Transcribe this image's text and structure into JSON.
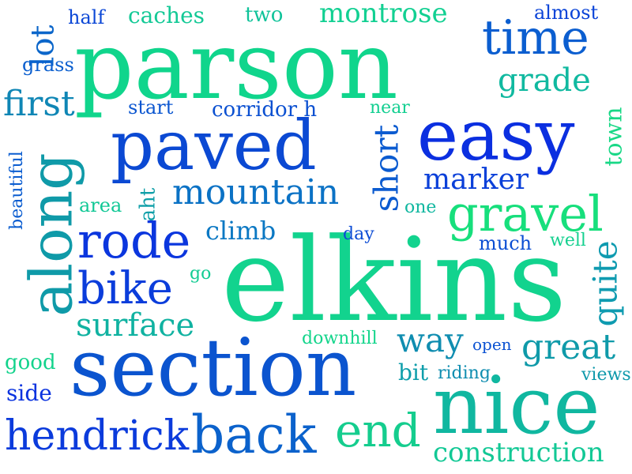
{
  "words": [
    {
      "text": "parson",
      "color": "#10d58c",
      "vertical": false
    },
    {
      "text": "elkins",
      "color": "#12d38e",
      "vertical": false
    },
    {
      "text": "section",
      "color": "#0b54cf",
      "vertical": false
    },
    {
      "text": "paved",
      "color": "#0b49d3",
      "vertical": false
    },
    {
      "text": "easy",
      "color": "#0b2fe0",
      "vertical": false
    },
    {
      "text": "nice",
      "color": "#10b7a0",
      "vertical": false
    },
    {
      "text": "along",
      "color": "#0f9aa8",
      "vertical": true
    },
    {
      "text": "time",
      "color": "#0b5ed0",
      "vertical": false
    },
    {
      "text": "gravel",
      "color": "#17df7c",
      "vertical": false
    },
    {
      "text": "rode",
      "color": "#0b36de",
      "vertical": false
    },
    {
      "text": "back",
      "color": "#0b62cc",
      "vertical": false
    },
    {
      "text": "end",
      "color": "#15cd8e",
      "vertical": false
    },
    {
      "text": "bike",
      "color": "#0b3ddb",
      "vertical": false
    },
    {
      "text": "hendrick",
      "color": "#0b3bdc",
      "vertical": false
    },
    {
      "text": "mountain",
      "color": "#0b72c5",
      "vertical": false
    },
    {
      "text": "surface",
      "color": "#10b2a1",
      "vertical": false
    },
    {
      "text": "great",
      "color": "#0f9aa9",
      "vertical": false
    },
    {
      "text": "way",
      "color": "#0f8db0",
      "vertical": false
    },
    {
      "text": "construction",
      "color": "#12c895",
      "vertical": false
    },
    {
      "text": "grade",
      "color": "#10b9a0",
      "vertical": false
    },
    {
      "text": "montrose",
      "color": "#12d092",
      "vertical": false
    },
    {
      "text": "first",
      "color": "#0f86b5",
      "vertical": false
    },
    {
      "text": "short",
      "color": "#0b5bd0",
      "vertical": true
    },
    {
      "text": "marker",
      "color": "#0b40d9",
      "vertical": false
    },
    {
      "text": "climb",
      "color": "#0b78c3",
      "vertical": false
    },
    {
      "text": "caches",
      "color": "#13c996",
      "vertical": false
    },
    {
      "text": "lot",
      "color": "#0b66ca",
      "vertical": true
    },
    {
      "text": "quite",
      "color": "#0f9bb0",
      "vertical": true
    },
    {
      "text": "corridor h",
      "color": "#0b50d1",
      "vertical": false
    },
    {
      "text": "two",
      "color": "#10c39a",
      "vertical": false
    },
    {
      "text": "half",
      "color": "#0b47d6",
      "vertical": false
    },
    {
      "text": "almost",
      "color": "#0b44d8",
      "vertical": false
    },
    {
      "text": "grass",
      "color": "#0b5fcf",
      "vertical": false
    },
    {
      "text": "start",
      "color": "#0b56d0",
      "vertical": false
    },
    {
      "text": "near",
      "color": "#13cf91",
      "vertical": false
    },
    {
      "text": "aht",
      "color": "#0f9fa8",
      "vertical": true
    },
    {
      "text": "area",
      "color": "#12c896",
      "vertical": false
    },
    {
      "text": "town",
      "color": "#18d886",
      "vertical": true
    },
    {
      "text": "one",
      "color": "#10b7a0",
      "vertical": false
    },
    {
      "text": "day",
      "color": "#0b4bd5",
      "vertical": false
    },
    {
      "text": "much",
      "color": "#0b4ed3",
      "vertical": false
    },
    {
      "text": "well",
      "color": "#15d08f",
      "vertical": false
    },
    {
      "text": "go",
      "color": "#13cc93",
      "vertical": false
    },
    {
      "text": "beautiful",
      "color": "#0b5dd0",
      "vertical": true
    },
    {
      "text": "downhill",
      "color": "#13d58b",
      "vertical": false
    },
    {
      "text": "open",
      "color": "#0b52d2",
      "vertical": false
    },
    {
      "text": "good",
      "color": "#13d38c",
      "vertical": false
    },
    {
      "text": "bit",
      "color": "#0f9eab",
      "vertical": false
    },
    {
      "text": "riding",
      "color": "#0f8db0",
      "vertical": false
    },
    {
      "text": "views",
      "color": "#0f99ab",
      "vertical": false
    },
    {
      "text": "side",
      "color": "#0b33df",
      "vertical": false
    }
  ]
}
